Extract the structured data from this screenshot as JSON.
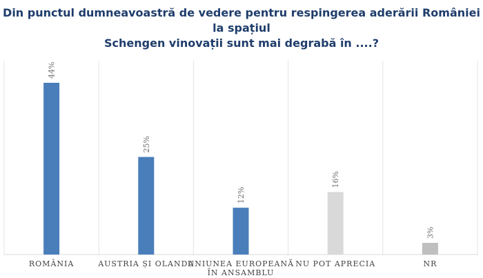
{
  "chart_data": {
    "type": "bar",
    "title_lines": [
      "Din punctul dumneavoastră de vedere pentru respingerea aderării României la spațiul",
      "Schengen vinovații sunt mai degrabă în ....?"
    ],
    "categories": [
      [
        "ROMÂNIA"
      ],
      [
        "AUSTRIA ȘI OLANDA"
      ],
      [
        "UNIUNEA EUROPEANĂ",
        "ÎN ANSAMBLU"
      ],
      [
        "NU POT APRECIA"
      ],
      [
        "NR"
      ]
    ],
    "values": [
      44,
      25,
      12,
      16,
      3
    ],
    "value_labels": [
      "44%",
      "25%",
      "12%",
      "16%",
      "3%"
    ],
    "colors": [
      "#4a7ebb",
      "#4a7ebb",
      "#4a7ebb",
      "#d9d9d9",
      "#bfbfbf"
    ],
    "ylim": [
      0,
      50
    ],
    "grid": "vertical separators"
  }
}
